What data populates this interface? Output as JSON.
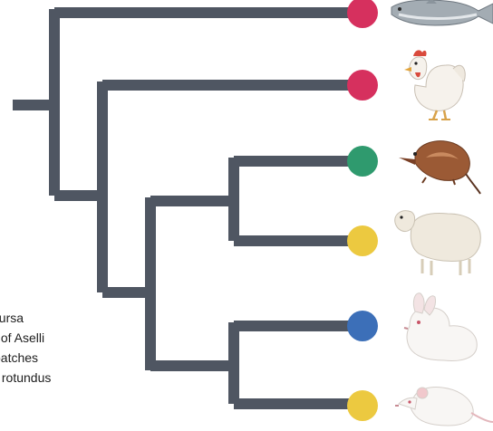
{
  "tree": {
    "branch_color": "#4f5662",
    "tips": [
      {
        "animal": "fish",
        "icon": "fish-icon",
        "dot_color": "#d6305e"
      },
      {
        "animal": "chicken",
        "icon": "chicken-icon",
        "dot_color": "#d6305e"
      },
      {
        "animal": "shrew",
        "icon": "shrew-icon",
        "dot_color": "#2f9a6e"
      },
      {
        "animal": "sheep",
        "icon": "sheep-icon",
        "dot_color": "#ecc940"
      },
      {
        "animal": "rabbit",
        "icon": "rabbit-icon",
        "dot_color": "#3c6fb8"
      },
      {
        "animal": "mouse",
        "icon": "mouse-icon",
        "dot_color": "#ecc940"
      }
    ]
  },
  "legend": {
    "items": [
      {
        "label": "bursa"
      },
      {
        "label": "s of Aselli"
      },
      {
        "label": "patches"
      },
      {
        "label": "s rotundus"
      }
    ]
  }
}
